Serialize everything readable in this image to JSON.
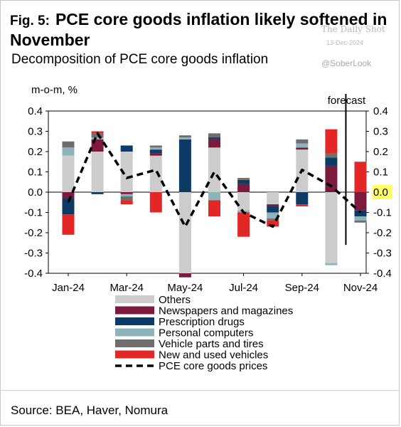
{
  "header": {
    "fig_label": "Fig. 5:",
    "title": "PCE core goods inflation likely softened in November",
    "subtitle": "Decomposition of PCE core goods inflation"
  },
  "watermark": {
    "name": "The Daily Shot",
    "date": "13-Dec-2024",
    "handle": "@SoberLook"
  },
  "footer": {
    "source": "Source: BEA, Haver, Nomura"
  },
  "colors": {
    "others": "#cccccc",
    "newspapers": "#7b1a3e",
    "prescription": "#0d3b66",
    "computers": "#8fb3bb",
    "vehicle_parts": "#6e6e6e",
    "vehicles": "#e32727",
    "highlight": "#ffff66"
  },
  "chart_data": {
    "type": "bar",
    "stacked": true,
    "ylabel": "m-o-m, %",
    "ylim": [
      -0.4,
      0.4
    ],
    "yticks": [
      "0.4",
      "0.3",
      "0.2",
      "0.1",
      "0.0",
      "-0.1",
      "-0.2",
      "-0.3",
      "-0.4"
    ],
    "yticks_right": [
      "0.4",
      "0.3",
      "0.2",
      "0.1",
      "0.0",
      "-0.1",
      "-0.2",
      "-0.3",
      "-0.4"
    ],
    "highlighted_tick": "0.0",
    "xtick_labels": [
      "Jan-24",
      "Mar-24",
      "May-24",
      "Jul-24",
      "Sep-24",
      "Nov-24"
    ],
    "categories": [
      "Jan-24",
      "Feb-24",
      "Mar-24",
      "Apr-24",
      "May-24",
      "Jun-24",
      "Jul-24",
      "Aug-24",
      "Sep-24",
      "Oct-24",
      "Nov-24"
    ],
    "forecast_label": "forecast",
    "forecast_after": "Oct-24",
    "series": [
      {
        "name": "Others",
        "color_key": "others",
        "values": [
          0.18,
          0.2,
          0.2,
          0.18,
          -0.4,
          0.22,
          -0.09,
          -0.06,
          0.21,
          -0.35,
          0.0
        ]
      },
      {
        "name": "Newspapers and magazines",
        "color_key": "newspapers",
        "values": [
          -0.03,
          0.06,
          -0.01,
          0.01,
          -0.02,
          0.04,
          0.04,
          -0.01,
          0.01,
          0.13,
          -0.09
        ]
      },
      {
        "name": "Prescription drugs",
        "color_key": "prescription",
        "values": [
          -0.08,
          -0.01,
          0.03,
          0.02,
          0.26,
          0.01,
          0.02,
          -0.03,
          -0.06,
          0.04,
          -0.03
        ]
      },
      {
        "name": "Personal computers",
        "color_key": "computers",
        "values": [
          0.04,
          0.01,
          -0.01,
          0.01,
          0.01,
          -0.04,
          -0.01,
          -0.03,
          0.02,
          -0.01,
          -0.02
        ]
      },
      {
        "name": "Vehicle parts and tires",
        "color_key": "vehicle_parts",
        "values": [
          0.03,
          0.02,
          -0.02,
          0.01,
          0.01,
          0.02,
          0.01,
          -0.01,
          0.02,
          0.02,
          -0.01
        ]
      },
      {
        "name": "New and used vehicles",
        "color_key": "vehicles",
        "values": [
          -0.1,
          0.01,
          -0.02,
          -0.1,
          0.0,
          -0.08,
          -0.12,
          -0.03,
          -0.01,
          0.12,
          0.15
        ]
      }
    ],
    "line": {
      "name": "PCE core goods prices",
      "values": [
        -0.05,
        0.29,
        0.07,
        0.11,
        -0.17,
        0.1,
        -0.1,
        -0.17,
        0.11,
        0.03,
        -0.1
      ]
    }
  }
}
